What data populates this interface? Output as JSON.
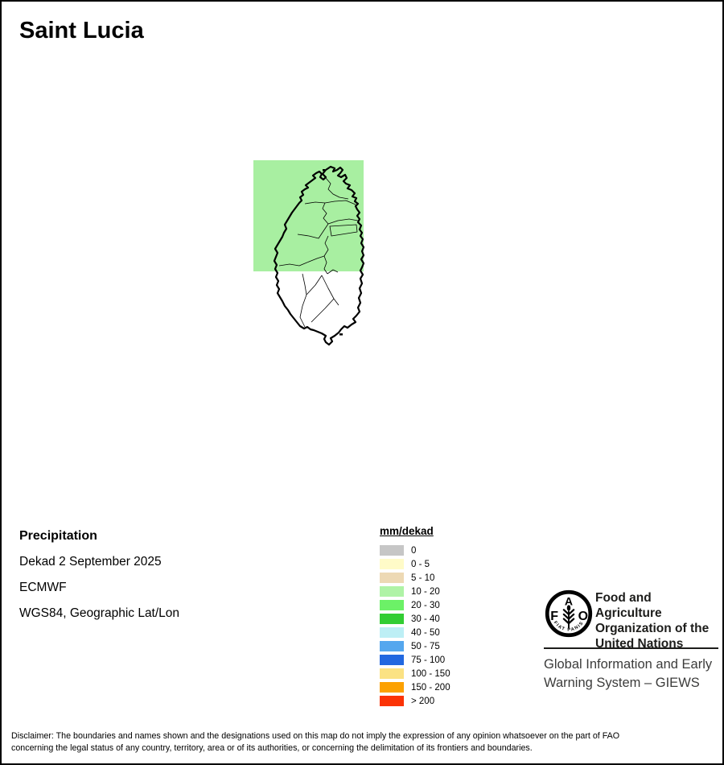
{
  "title": "Saint Lucia",
  "map": {
    "country": "Saint Lucia",
    "overlay_color": "#A8EFA1",
    "overlay_value_range": "10 - 20",
    "coast_color": "#000000",
    "no_data_fill": "#ffffff"
  },
  "info": {
    "heading": "Precipitation",
    "dekad": "Dekad 2 September 2025",
    "source": "ECMWF",
    "projection": "WGS84, Geographic Lat/Lon"
  },
  "legend": {
    "title": "mm/dekad",
    "items": [
      {
        "label": "0",
        "color": "#C6C6C6"
      },
      {
        "label": "0 - 5",
        "color": "#FFFBC8"
      },
      {
        "label": "5 - 10",
        "color": "#EDD9B4"
      },
      {
        "label": "10 - 20",
        "color": "#AFF3A6"
      },
      {
        "label": "20 - 30",
        "color": "#6CF167"
      },
      {
        "label": "30 - 40",
        "color": "#32CD33"
      },
      {
        "label": "40 - 50",
        "color": "#BDEFF5"
      },
      {
        "label": "50 - 75",
        "color": "#55A7EE"
      },
      {
        "label": "75 - 100",
        "color": "#2268E0"
      },
      {
        "label": "100 - 150",
        "color": "#FBE283"
      },
      {
        "label": "150 - 200",
        "color": "#FCA101"
      },
      {
        "label": "> 200",
        "color": "#FB3306"
      }
    ]
  },
  "fao": {
    "logo_letters": [
      "F",
      "A",
      "O"
    ],
    "logo_motto": "FIAT PANIS",
    "org_lines": [
      "Food and Agriculture",
      "Organization of the",
      "United Nations"
    ],
    "giews_lines": [
      "Global Information and Early",
      "Warning System – GIEWS"
    ]
  },
  "disclaimer": {
    "line1": "Disclaimer: The boundaries and names shown and the designations used on this map do not imply the expression of any opinion whatsoever on the part of FAO",
    "line2": "concerning the legal status of any country, territory, area or of its authorities, or concerning the delimitation of its frontiers and boundaries."
  }
}
